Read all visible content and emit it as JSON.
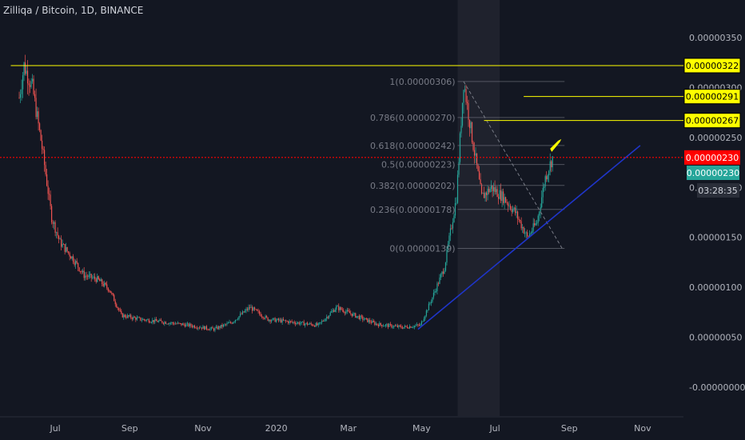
{
  "title": "Zilliqa / Bitcoin, 1D, BINANCE",
  "colors": {
    "background": "#131722",
    "up": "#26a69a",
    "down": "#ef5350",
    "yellow": "#ffff00",
    "trend": "#1f35c9",
    "current": "#ff0000"
  },
  "chart_data": {
    "type": "candlestick",
    "x_ticks": [
      "Jul",
      "Sep",
      "Nov",
      "2020",
      "Mar",
      "May",
      "Jul",
      "Sep",
      "Nov"
    ],
    "y_ticks": [
      "0.00000350",
      "0.00000300",
      "0.00000250",
      "0.00000200",
      "0.00000150",
      "0.00000100",
      "0.00000050",
      "-0.00000000"
    ],
    "ylim": [
      -0.0,
      3.5e-06
    ],
    "close_path": [
      {
        "t": "2019-06-01",
        "v": 2.9e-06
      },
      {
        "t": "2019-06-05",
        "v": 3.22e-06
      },
      {
        "t": "2019-06-12",
        "v": 3e-06
      },
      {
        "t": "2019-06-20",
        "v": 2.4e-06
      },
      {
        "t": "2019-06-28",
        "v": 1.7e-06
      },
      {
        "t": "2019-07-05",
        "v": 1.45e-06
      },
      {
        "t": "2019-07-15",
        "v": 1.3e-06
      },
      {
        "t": "2019-07-25",
        "v": 1.12e-06
      },
      {
        "t": "2019-08-05",
        "v": 1.08e-06
      },
      {
        "t": "2019-08-15",
        "v": 9.8e-07
      },
      {
        "t": "2019-08-25",
        "v": 7.2e-07
      },
      {
        "t": "2019-09-10",
        "v": 6.8e-07
      },
      {
        "t": "2019-10-01",
        "v": 6.5e-07
      },
      {
        "t": "2019-10-20",
        "v": 6.2e-07
      },
      {
        "t": "2019-11-10",
        "v": 5.8e-07
      },
      {
        "t": "2019-11-25",
        "v": 6.5e-07
      },
      {
        "t": "2019-12-10",
        "v": 8e-07
      },
      {
        "t": "2019-12-25",
        "v": 6.8e-07
      },
      {
        "t": "2020-01-15",
        "v": 6.5e-07
      },
      {
        "t": "2020-02-05",
        "v": 6.2e-07
      },
      {
        "t": "2020-02-20",
        "v": 8e-07
      },
      {
        "t": "2020-03-10",
        "v": 7e-07
      },
      {
        "t": "2020-03-25",
        "v": 6.3e-07
      },
      {
        "t": "2020-04-15",
        "v": 6e-07
      },
      {
        "t": "2020-04-30",
        "v": 6.2e-07
      },
      {
        "t": "2020-05-10",
        "v": 9e-07
      },
      {
        "t": "2020-05-20",
        "v": 1.2e-06
      },
      {
        "t": "2020-05-30",
        "v": 1.9e-06
      },
      {
        "t": "2020-06-05",
        "v": 3.06e-06
      },
      {
        "t": "2020-06-12",
        "v": 2.5e-06
      },
      {
        "t": "2020-06-20",
        "v": 1.9e-06
      },
      {
        "t": "2020-06-28",
        "v": 2e-06
      },
      {
        "t": "2020-07-08",
        "v": 1.9e-06
      },
      {
        "t": "2020-07-18",
        "v": 1.75e-06
      },
      {
        "t": "2020-07-28",
        "v": 1.5e-06
      },
      {
        "t": "2020-08-05",
        "v": 1.65e-06
      },
      {
        "t": "2020-08-12",
        "v": 2.1e-06
      },
      {
        "t": "2020-08-18",
        "v": 2.3e-06
      }
    ],
    "fib_levels": [
      {
        "ratio": "1",
        "value": 3.06e-06,
        "label": "1(0.00000306)"
      },
      {
        "ratio": "0.786",
        "value": 2.7e-06,
        "label": "0.786(0.00000270)"
      },
      {
        "ratio": "0.618",
        "value": 2.42e-06,
        "label": "0.618(0.00000242)"
      },
      {
        "ratio": "0.5",
        "value": 2.23e-06,
        "label": "0.5(0.00000223)"
      },
      {
        "ratio": "0.382",
        "value": 2.02e-06,
        "label": "0.382(0.00000202)"
      },
      {
        "ratio": "0.236",
        "value": 1.78e-06,
        "label": "0.236(0.00000178)"
      },
      {
        "ratio": "0",
        "value": 1.39e-06,
        "label": "0(0.00000139)"
      }
    ],
    "horizontal_levels": [
      {
        "value": 3.22e-06,
        "label": "0.00000322",
        "color": "#ffff00"
      },
      {
        "value": 2.91e-06,
        "label": "0.00000291",
        "color": "#ffff00"
      },
      {
        "value": 2.67e-06,
        "label": "0.00000267",
        "color": "#ffff00"
      }
    ],
    "current_price": {
      "value": 2.3e-06,
      "label": "0.00000230"
    },
    "last_price": {
      "label": "0.00000230",
      "countdown": "03:28:35"
    }
  }
}
